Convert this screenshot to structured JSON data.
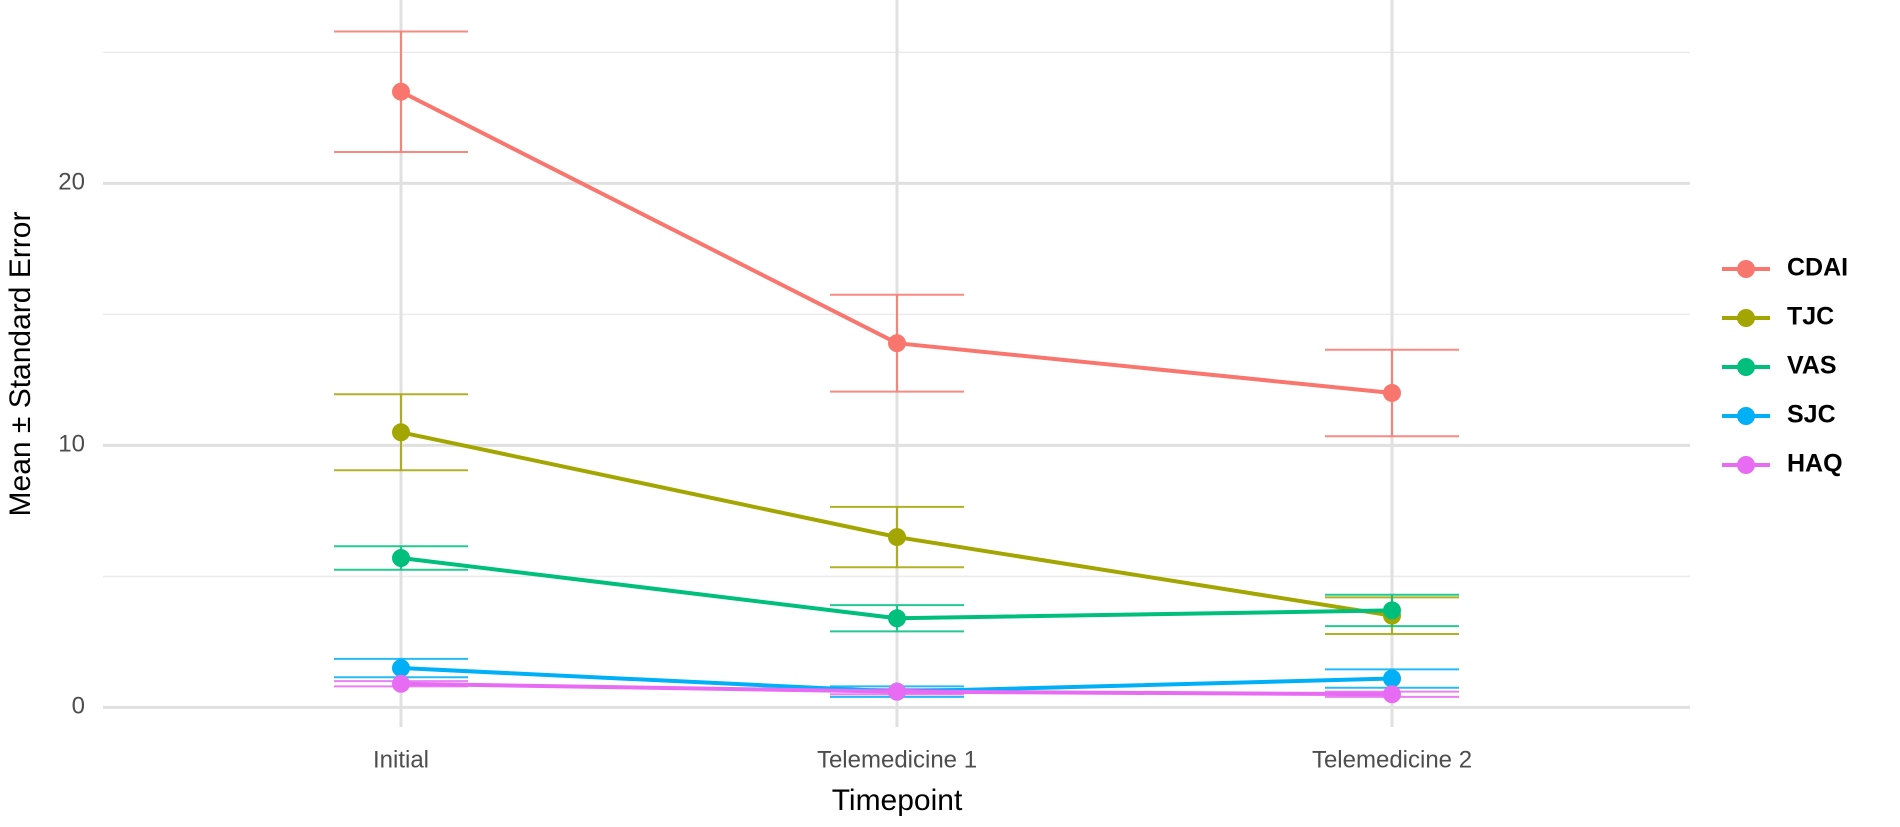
{
  "chart_data": {
    "type": "line_errorbar",
    "x_label": "Timepoint",
    "y_label": "Mean ± Standard Error",
    "categories": [
      "Initial",
      "Telemedicine 1",
      "Telemedicine 2"
    ],
    "ylim": [
      -0.75,
      27
    ],
    "yticks": [
      0,
      10,
      20
    ],
    "yminor": [
      5,
      15,
      25
    ],
    "grid": true,
    "legend": "right",
    "series": [
      {
        "name": "CDAI",
        "color": "#F8766D",
        "values": [
          23.5,
          13.9,
          12.0
        ],
        "errors": [
          2.3,
          1.85,
          1.65
        ]
      },
      {
        "name": "TJC",
        "color": "#A3A500",
        "values": [
          10.5,
          6.5,
          3.5
        ],
        "errors": [
          1.45,
          1.15,
          0.7
        ]
      },
      {
        "name": "VAS",
        "color": "#00BF7D",
        "values": [
          5.7,
          3.4,
          3.7
        ],
        "errors": [
          0.45,
          0.5,
          0.6
        ]
      },
      {
        "name": "SJC",
        "color": "#00B0F6",
        "values": [
          1.5,
          0.6,
          1.1
        ],
        "errors": [
          0.35,
          0.2,
          0.35
        ]
      },
      {
        "name": "HAQ",
        "color": "#E76BF3",
        "values": [
          0.9,
          0.6,
          0.5
        ],
        "errors": [
          0.1,
          0.1,
          0.1
        ]
      }
    ]
  }
}
